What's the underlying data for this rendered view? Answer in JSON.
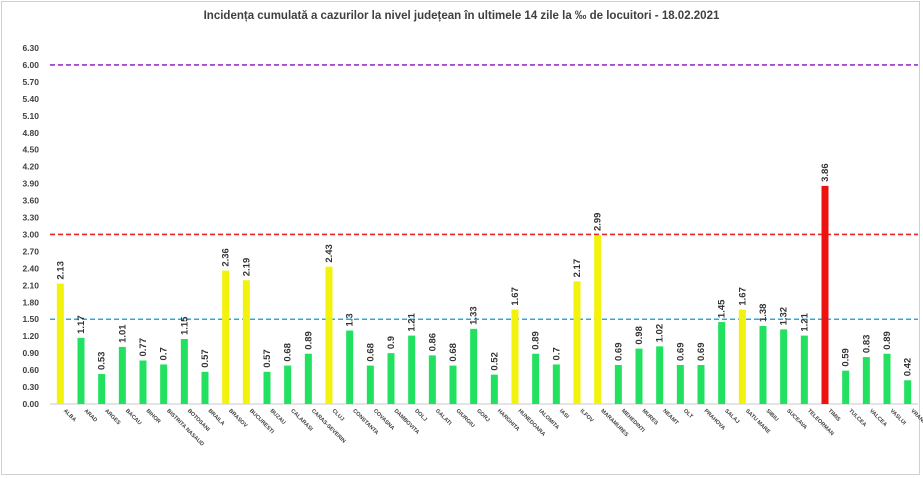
{
  "chart_data": {
    "type": "bar",
    "title": "Incidența cumulată a cazurilor la nivel județean în ultimele 14 zile la ‰ de locuitori - 18.02.2021",
    "xlabel": "",
    "ylabel": "",
    "ylim": [
      0,
      6.3
    ],
    "yticks": [
      "0.00",
      "0.30",
      "0.60",
      "0.90",
      "1.20",
      "1.50",
      "1.80",
      "2.10",
      "2.40",
      "2.70",
      "3.00",
      "3.30",
      "3.60",
      "3.90",
      "4.20",
      "4.50",
      "4.80",
      "5.10",
      "5.40",
      "5.70",
      "6.00",
      "6.30"
    ],
    "categories": [
      "ALBA",
      "ARAD",
      "ARGES",
      "BACAU",
      "BIHOR",
      "BISTRITA NASAUD",
      "BOTOSANI",
      "BRAILA",
      "BRASOV",
      "BUCURESTI",
      "BUZAU",
      "CALARASI",
      "CARAS-SEVERIN",
      "CLUJ",
      "CONSTANTA",
      "COVASNA",
      "DAMBOVITA",
      "DOLJ",
      "GALATI",
      "GIURGIU",
      "GORJ",
      "HARGHITA",
      "HUNEDOARA",
      "IALOMITA",
      "IASI",
      "ILFOV",
      "MARAMURES",
      "MEHEDINTI",
      "MURES",
      "NEAMT",
      "OLT",
      "PRAHOVA",
      "SALAJ",
      "SATU MARE",
      "SIBIU",
      "SUCEAVA",
      "TELEORMAN",
      "TIMIS",
      "TULCEA",
      "VALCEA",
      "VASLUI",
      "VRANCEA"
    ],
    "values": [
      2.13,
      1.17,
      0.53,
      1.01,
      0.77,
      0.7,
      1.15,
      0.57,
      2.36,
      2.19,
      0.57,
      0.68,
      0.89,
      2.43,
      1.3,
      0.68,
      0.9,
      1.21,
      0.86,
      0.68,
      1.33,
      0.52,
      1.67,
      0.89,
      0.7,
      2.17,
      2.99,
      0.69,
      0.98,
      1.02,
      0.69,
      0.69,
      1.45,
      1.67,
      1.38,
      1.32,
      1.21,
      3.86,
      0.59,
      0.83,
      0.89,
      0.42
    ],
    "value_labels": [
      "2.13",
      "1.17",
      "0.53",
      "1.01",
      "0.77",
      "0.7",
      "1.15",
      "0.57",
      "2.36",
      "2.19",
      "0.57",
      "0.68",
      "0.89",
      "2.43",
      "1.3",
      "0.68",
      "0.9",
      "1.21",
      "0.86",
      "0.68",
      "1.33",
      "0.52",
      "1.67",
      "0.89",
      "0.7",
      "2.17",
      "2.99",
      "0.69",
      "0.98",
      "1.02",
      "0.69",
      "0.69",
      "1.45",
      "1.67",
      "1.38",
      "1.32",
      "1.21",
      "3.86",
      "0.59",
      "0.83",
      "0.89",
      "0.42"
    ],
    "thresholds": [
      {
        "value": 6.0,
        "color": "#9b30d0",
        "style": "dashed"
      },
      {
        "value": 3.0,
        "color": "#e8262a",
        "style": "dashed"
      },
      {
        "value": 1.5,
        "color": "#2aa8e0",
        "style": "dashed"
      }
    ],
    "bar_colors": {
      "green": "#22e060",
      "yellow": "#f2f20d",
      "red": "#ee1111"
    },
    "grid": false,
    "legend": "none"
  }
}
